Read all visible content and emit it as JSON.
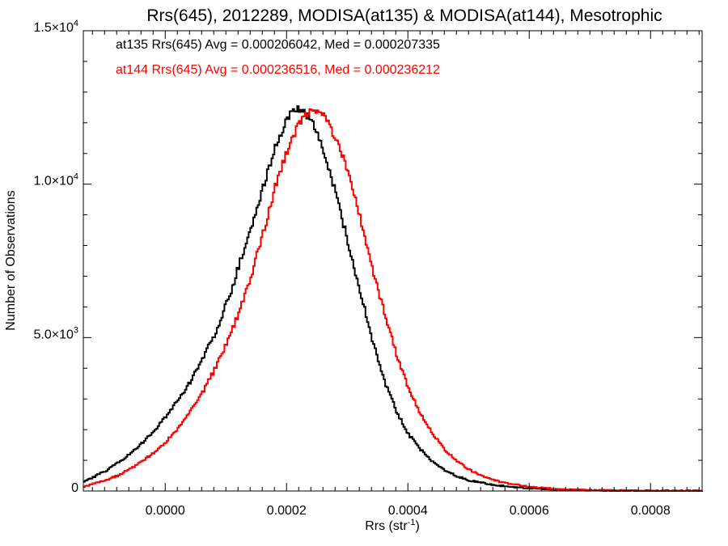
{
  "chart_data": {
    "type": "line",
    "title": "Rrs(645), 2012289, MODISA(at135) & MODISA(at144), Mesotrophic",
    "xlabel_base": "Rrs (str",
    "xlabel_exp": "-1",
    "xlabel_close": ")",
    "ylabel": "Number of Observations",
    "xlim": [
      -0.000135,
      0.000885
    ],
    "ylim": [
      0,
      15000
    ],
    "x_ticks": [
      {
        "value": 0.0,
        "label": "0.0000"
      },
      {
        "value": 0.0002,
        "label": "0.0002"
      },
      {
        "value": 0.0004,
        "label": "0.0004"
      },
      {
        "value": 0.0006,
        "label": "0.0006"
      },
      {
        "value": 0.0008,
        "label": "0.0008"
      }
    ],
    "y_ticks": [
      {
        "value": 0,
        "mant": "0",
        "exp": ""
      },
      {
        "value": 5000,
        "mant": "5.0×10",
        "exp": "3"
      },
      {
        "value": 10000,
        "mant": "1.0×10",
        "exp": "4"
      },
      {
        "value": 15000,
        "mant": "1.5×10",
        "exp": "4"
      }
    ],
    "annotations": [
      {
        "text": "at135 Rrs(645) Avg = 0.000206042, Med = 0.000207335",
        "color": "#000000"
      },
      {
        "text": "at144 Rrs(645) Avg = 0.000236516, Med = 0.000236212",
        "color": "#ff0000"
      }
    ],
    "series": [
      {
        "color": "#000000",
        "x": [
          -0.000135,
          -0.00012,
          -0.0001,
          -8e-05,
          -6e-05,
          -4e-05,
          -2e-05,
          0.0,
          2e-05,
          4e-05,
          6e-05,
          8e-05,
          0.0001,
          0.00012,
          0.00014,
          0.00016,
          0.00018,
          0.0002,
          0.00021,
          0.00022,
          0.00023,
          0.00024,
          0.00025,
          0.00026,
          0.00028,
          0.0003,
          0.00032,
          0.00034,
          0.00036,
          0.00038,
          0.0004,
          0.00042,
          0.00044,
          0.00046,
          0.00048,
          0.0005,
          0.00055,
          0.0006,
          0.00065,
          0.0007,
          0.00075,
          0.0008,
          0.00085,
          0.000885
        ],
        "values": [
          300,
          450,
          650,
          900,
          1200,
          1550,
          1950,
          2450,
          2950,
          3550,
          4300,
          5100,
          6100,
          7300,
          8600,
          9900,
          11200,
          12100,
          12450,
          12400,
          12300,
          12100,
          11700,
          11000,
          9700,
          8100,
          6500,
          4950,
          3600,
          2600,
          1850,
          1350,
          950,
          680,
          480,
          340,
          170,
          85,
          45,
          25,
          12,
          6,
          3,
          2
        ]
      },
      {
        "color": "#ff0000",
        "x": [
          -0.000135,
          -0.00012,
          -0.0001,
          -8e-05,
          -6e-05,
          -4e-05,
          -2e-05,
          0.0,
          2e-05,
          4e-05,
          6e-05,
          8e-05,
          0.0001,
          0.00012,
          0.00014,
          0.00016,
          0.00018,
          0.0002,
          0.00022,
          0.00024,
          0.00025,
          0.00026,
          0.00027,
          0.00028,
          0.0003,
          0.00032,
          0.00034,
          0.00036,
          0.00038,
          0.0004,
          0.00042,
          0.00044,
          0.00046,
          0.00048,
          0.0005,
          0.00052,
          0.00055,
          0.0006,
          0.00065,
          0.0007,
          0.00075,
          0.0008,
          0.00085,
          0.000885
        ],
        "values": [
          130,
          230,
          350,
          500,
          700,
          950,
          1250,
          1600,
          2050,
          2600,
          3200,
          3950,
          4800,
          5800,
          7000,
          8400,
          9900,
          11100,
          12000,
          12450,
          12400,
          12200,
          11900,
          11500,
          10400,
          8900,
          7300,
          5800,
          4450,
          3350,
          2500,
          1850,
          1350,
          980,
          700,
          500,
          300,
          130,
          60,
          28,
          13,
          6,
          3,
          2
        ]
      }
    ]
  }
}
